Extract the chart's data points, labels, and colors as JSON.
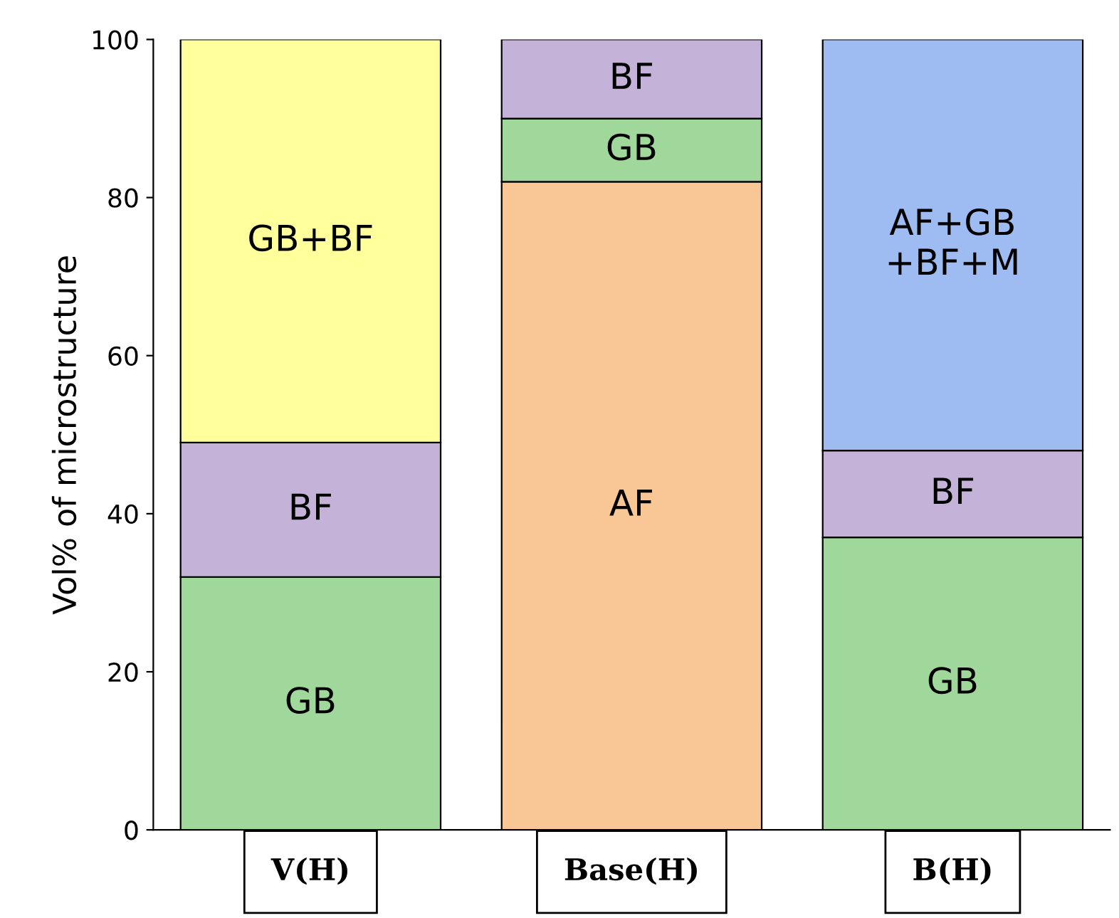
{
  "chart_data": {
    "type": "bar",
    "stacked": true,
    "ylabel": "Vol% of microstructure",
    "categories": [
      "V(H)",
      "Base(H)",
      "B(H)"
    ],
    "ylim": [
      0,
      100
    ],
    "yticks": [
      0,
      20,
      40,
      60,
      80,
      100
    ],
    "grid": false,
    "legend": false,
    "series": [
      {
        "colors": [
          "#a0d89c",
          "#f9c796",
          "#a0d89c"
        ],
        "values": [
          32,
          82,
          37
        ],
        "value_labels": [
          "GB",
          "AF",
          "GB"
        ]
      },
      {
        "colors": [
          "#c4b2d8",
          "#a0d89c",
          "#c4b2d8"
        ],
        "values": [
          17,
          8,
          11
        ],
        "value_labels": [
          "BF",
          "GB",
          "BF"
        ]
      },
      {
        "colors": [
          "#ffff9c",
          "#c4b2d8",
          "#9ebcf2"
        ],
        "values": [
          51,
          10,
          52
        ],
        "value_labels": [
          "GB+BF",
          "BF",
          "AF+GB\n+BF+M"
        ]
      }
    ]
  }
}
